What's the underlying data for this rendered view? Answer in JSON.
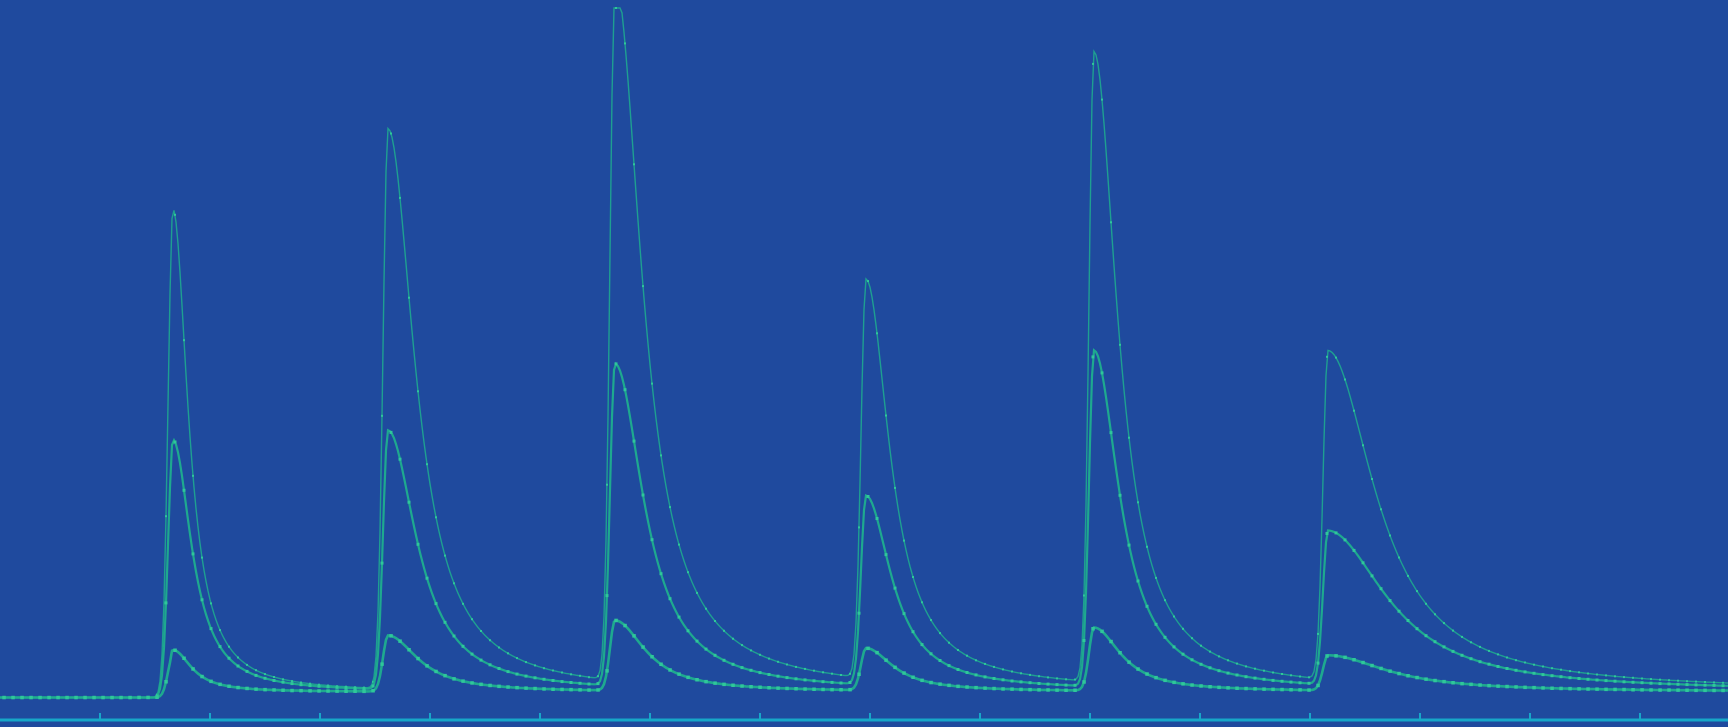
{
  "colors": {
    "background": "#1f4a9e",
    "series_stroke": "#1fae8e",
    "series_marker": "#2fc79a",
    "axis_line": "#17a7c8"
  },
  "chart_data": {
    "type": "line",
    "title": "",
    "xlabel": "",
    "ylabel": "",
    "grid": false,
    "legend": "none",
    "xlim": [
      0,
      1728
    ],
    "ylim": [
      0,
      100
    ],
    "x_tick_count": 15,
    "baseline_step_x": 172,
    "peaks_x": [
      173,
      388,
      615,
      866,
      1094,
      1328
    ],
    "series": [
      {
        "baseline": 1.5,
        "peak_heights": [
          69,
          80,
          100,
          57,
          90,
          47
        ],
        "peak_widths": [
          18,
          32,
          32,
          28,
          28,
          56
        ]
      },
      {
        "baseline": 1.5,
        "peak_heights": [
          36,
          37,
          46,
          27,
          48,
          22
        ],
        "peak_widths": [
          22,
          34,
          34,
          30,
          30,
          70
        ]
      },
      {
        "baseline": 1.5,
        "peak_heights": [
          6,
          8,
          10,
          6,
          9,
          5
        ],
        "peak_widths": [
          22,
          36,
          36,
          32,
          32,
          70
        ]
      }
    ]
  }
}
